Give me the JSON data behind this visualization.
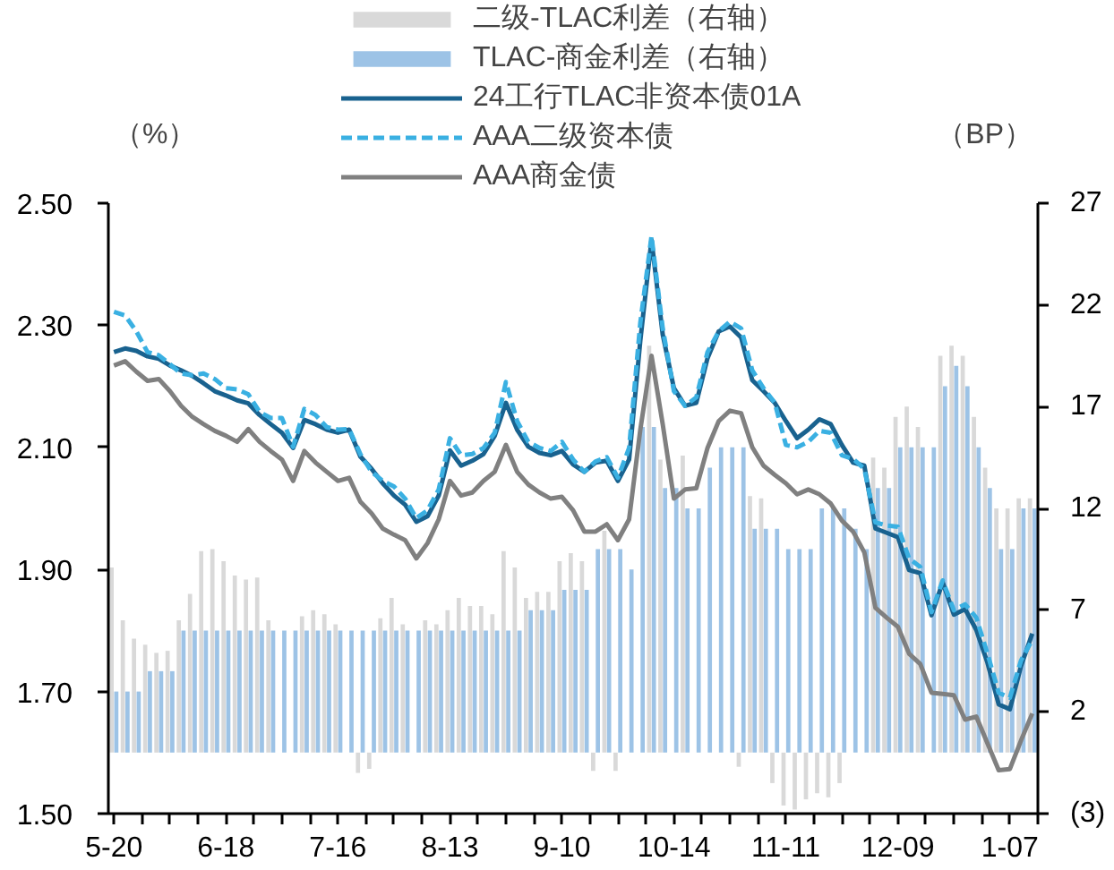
{
  "chart_data": {
    "type": "bar",
    "categories": [
      "5-20",
      null,
      null,
      null,
      null,
      null,
      null,
      null,
      null,
      null,
      "6-18",
      null,
      null,
      null,
      null,
      null,
      null,
      null,
      null,
      null,
      "7-16",
      null,
      null,
      null,
      null,
      null,
      null,
      null,
      null,
      null,
      "8-13",
      null,
      null,
      null,
      null,
      null,
      null,
      null,
      null,
      null,
      "9-10",
      null,
      null,
      null,
      null,
      null,
      null,
      null,
      null,
      null,
      "10-14",
      null,
      null,
      null,
      null,
      null,
      null,
      null,
      null,
      null,
      "11-11",
      null,
      null,
      null,
      null,
      null,
      null,
      null,
      null,
      null,
      "12-09",
      null,
      null,
      null,
      null,
      null,
      null,
      null,
      null,
      null,
      "1-07",
      null,
      null
    ],
    "series": [
      {
        "name": "二级-TLAC利差（右轴）",
        "axis": "y2",
        "color": "#d9d9d9",
        "values": [
          9.1,
          6.5,
          5.6,
          5.3,
          4.9,
          5.0,
          6.5,
          7.8,
          9.9,
          10.0,
          9.4,
          8.7,
          8.5,
          8.6,
          6.5,
          null,
          null,
          6.7,
          7.0,
          6.8,
          6.3,
          null,
          -1.0,
          -0.8,
          6.6,
          7.6,
          6.3,
          null,
          6.5,
          6.3,
          7.0,
          7.6,
          7.2,
          7.2,
          6.8,
          9.9,
          9.1,
          7.6,
          7.9,
          7.9,
          9.4,
          9.8,
          9.4,
          -0.9,
          10.9,
          -0.9,
          null,
          null,
          20.0,
          14.4,
          null,
          14.6,
          null,
          null,
          null,
          null,
          -0.7,
          12.6,
          12.5,
          -1.5,
          -2.6,
          -2.8,
          -2.3,
          -2.0,
          -2.2,
          -1.5,
          null,
          null,
          14.5,
          14.0,
          16.5,
          17.0,
          16.0,
          null,
          19.5,
          20.0,
          19.5,
          16.5,
          14.0,
          12.0,
          12.0,
          12.5,
          12.5
        ]
      },
      {
        "name": "TLAC-商金利差（右轴）",
        "axis": "y2",
        "color": "#9dc3e6",
        "values": [
          3,
          3,
          3,
          4,
          4,
          4,
          6,
          6,
          6,
          6,
          6,
          6,
          6,
          6,
          6,
          6,
          6,
          6,
          6,
          6,
          6,
          6,
          6,
          6,
          6,
          6,
          6,
          6,
          6,
          6,
          6,
          6,
          6,
          6,
          6,
          6,
          6,
          7,
          7,
          7,
          8,
          8,
          8,
          10,
          10,
          10,
          9,
          16,
          16,
          13,
          13,
          12,
          12,
          14,
          15,
          15,
          15,
          11,
          11,
          11,
          10,
          10,
          10,
          12,
          12,
          12,
          11,
          10,
          13,
          13,
          15,
          15,
          15,
          15,
          18,
          19,
          18,
          15,
          13,
          10,
          10,
          12,
          12
        ]
      },
      {
        "name": "24工行TLAC非资本债01A",
        "type": "line",
        "color": "#19628f",
        "values": [
          2.256,
          2.262,
          2.258,
          2.249,
          2.245,
          2.234,
          2.226,
          2.217,
          2.205,
          2.192,
          2.185,
          2.177,
          2.172,
          2.153,
          2.138,
          2.124,
          2.099,
          2.145,
          2.138,
          2.129,
          2.124,
          2.129,
          2.085,
          2.065,
          2.041,
          2.021,
          2.006,
          1.978,
          1.987,
          2.021,
          2.095,
          2.07,
          2.078,
          2.089,
          2.119,
          2.173,
          2.129,
          2.101,
          2.091,
          2.087,
          2.094,
          2.072,
          2.06,
          2.075,
          2.078,
          2.045,
          2.08,
          2.275,
          2.44,
          2.285,
          2.197,
          2.168,
          2.173,
          2.246,
          2.29,
          2.298,
          2.28,
          2.21,
          2.192,
          2.173,
          2.143,
          2.115,
          2.129,
          2.146,
          2.138,
          2.104,
          2.075,
          2.07,
          1.967,
          1.96,
          1.953,
          1.899,
          1.894,
          1.825,
          1.879,
          1.826,
          1.835,
          1.801,
          1.747,
          1.679,
          1.671,
          1.742,
          1.795
        ]
      },
      {
        "name": "AAA二级资本债",
        "type": "line",
        "color": "#3ab0e2",
        "line_style": "dashed",
        "values": [
          2.322,
          2.316,
          2.29,
          2.256,
          2.251,
          2.236,
          2.221,
          2.218,
          2.221,
          2.212,
          2.197,
          2.195,
          2.187,
          2.158,
          2.148,
          2.148,
          2.101,
          2.163,
          2.153,
          2.133,
          2.129,
          2.13,
          2.089,
          2.06,
          2.045,
          2.036,
          2.016,
          1.984,
          1.997,
          2.031,
          2.115,
          2.087,
          2.089,
          2.099,
          2.124,
          2.207,
          2.143,
          2.109,
          2.099,
          2.094,
          2.109,
          2.08,
          2.06,
          2.077,
          2.084,
          2.05,
          2.099,
          2.304,
          2.446,
          2.295,
          2.192,
          2.168,
          2.182,
          2.256,
          2.29,
          2.306,
          2.295,
          2.226,
          2.197,
          2.173,
          2.104,
          2.1,
          2.109,
          2.127,
          2.124,
          2.087,
          2.081,
          2.065,
          1.977,
          1.972,
          1.97,
          1.918,
          1.904,
          1.83,
          1.882,
          1.833,
          1.843,
          1.821,
          1.762,
          1.698,
          1.69,
          1.751,
          1.785
        ]
      },
      {
        "name": "AAA商金债",
        "type": "line",
        "color": "#808080",
        "values": [
          2.234,
          2.241,
          2.224,
          2.209,
          2.212,
          2.192,
          2.168,
          2.15,
          2.138,
          2.127,
          2.119,
          2.109,
          2.13,
          2.109,
          2.094,
          2.08,
          2.045,
          2.094,
          2.075,
          2.06,
          2.045,
          2.05,
          2.011,
          1.992,
          1.967,
          1.957,
          1.948,
          1.918,
          1.943,
          1.982,
          2.045,
          2.021,
          2.026,
          2.045,
          2.06,
          2.104,
          2.06,
          2.039,
          2.026,
          2.016,
          2.019,
          1.997,
          1.962,
          1.962,
          1.974,
          1.948,
          1.982,
          2.129,
          2.25,
          2.138,
          2.016,
          2.031,
          2.033,
          2.099,
          2.143,
          2.16,
          2.156,
          2.1,
          2.07,
          2.055,
          2.041,
          2.023,
          2.031,
          2.023,
          2.008,
          1.98,
          1.962,
          1.928,
          1.837,
          1.821,
          1.806,
          1.762,
          1.745,
          1.698,
          1.696,
          1.694,
          1.654,
          1.659,
          1.615,
          1.571,
          1.573,
          1.62,
          1.664
        ]
      }
    ],
    "ylabel": "（%）",
    "y2label": "（BP）",
    "ylim": [
      1.5,
      2.5
    ],
    "yticks": [
      {
        "value": 1.5,
        "label": "1.50"
      },
      {
        "value": 1.7,
        "label": "1.70"
      },
      {
        "value": 1.9,
        "label": "1.90"
      },
      {
        "value": 2.1,
        "label": "2.10"
      },
      {
        "value": 2.3,
        "label": "2.30"
      },
      {
        "value": 2.5,
        "label": "2.50"
      }
    ],
    "y2lim": [
      -3,
      27
    ],
    "y2ticks": [
      {
        "value": -3,
        "label": "(3)"
      },
      2,
      7,
      12,
      17,
      22,
      27
    ],
    "legend": "top",
    "grid": false
  }
}
